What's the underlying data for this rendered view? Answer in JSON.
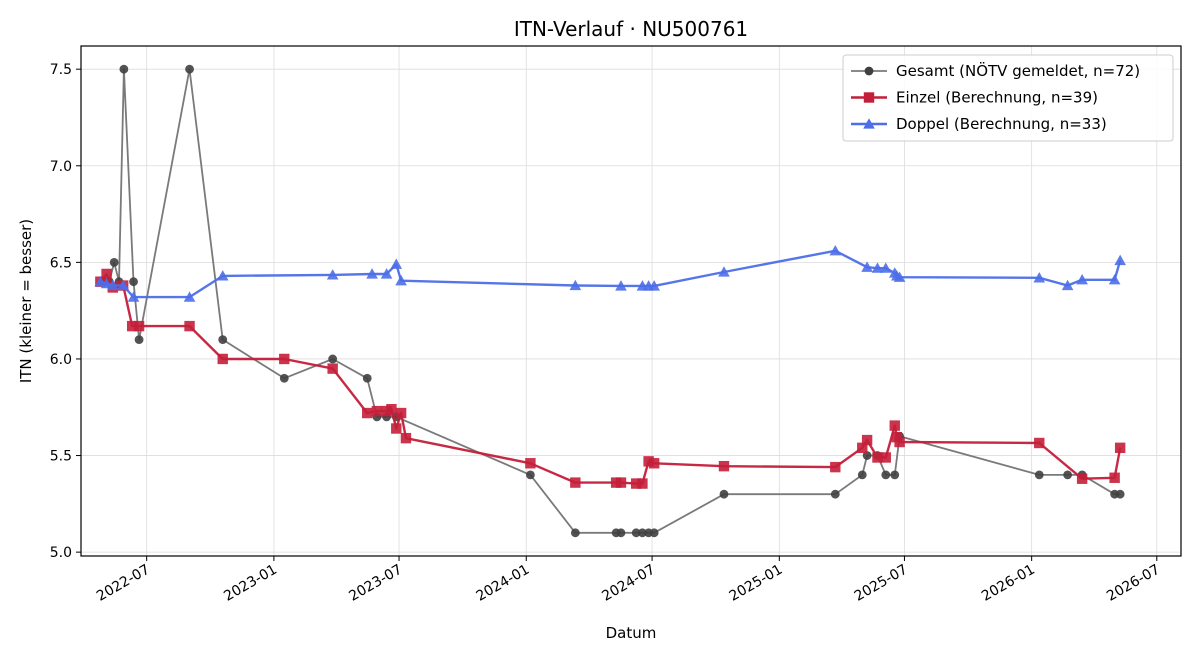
{
  "chart_data": {
    "type": "line",
    "title": "ITN-Verlauf · NU500761",
    "xlabel": "Datum",
    "ylabel": "ITN  (kleiner = besser)",
    "x_type": "date",
    "xlim": [
      "2022-03-28",
      "2026-08-05"
    ],
    "ylim": [
      4.98,
      7.62
    ],
    "x_ticks": [
      "2022-07-01",
      "2023-01-01",
      "2023-07-01",
      "2024-01-01",
      "2024-07-01",
      "2025-01-01",
      "2025-07-01",
      "2026-01-01",
      "2026-07-01"
    ],
    "x_tick_labels": [
      "2022-07",
      "2023-01",
      "2023-07",
      "2024-01",
      "2024-07",
      "2025-01",
      "2025-07",
      "2026-01",
      "2026-07"
    ],
    "y_ticks": [
      5.0,
      5.5,
      6.0,
      6.5,
      7.0,
      7.5
    ],
    "y_tick_labels": [
      "5.0",
      "5.5",
      "6.0",
      "6.5",
      "7.0",
      "7.5"
    ],
    "grid": true,
    "legend_position": "top-right",
    "series": [
      {
        "name": "Gesamt (NÖTV gemeldet, n=72)",
        "color": "#7a7a7a",
        "marker_color": "#404040",
        "marker": "circle",
        "points": [
          [
            "2022-05-01",
            6.4
          ],
          [
            "2022-05-08",
            6.4
          ],
          [
            "2022-05-15",
            6.5
          ],
          [
            "2022-05-22",
            6.4
          ],
          [
            "2022-05-29",
            7.5
          ],
          [
            "2022-06-12",
            6.4
          ],
          [
            "2022-06-20",
            6.1
          ],
          [
            "2022-09-01",
            7.5
          ],
          [
            "2022-10-19",
            6.1
          ],
          [
            "2023-01-16",
            5.9
          ],
          [
            "2023-03-27",
            6.0
          ],
          [
            "2023-05-16",
            5.9
          ],
          [
            "2023-05-30",
            5.7
          ],
          [
            "2023-06-13",
            5.7
          ],
          [
            "2023-06-27",
            5.7
          ],
          [
            "2024-01-07",
            5.4
          ],
          [
            "2024-03-12",
            5.1
          ],
          [
            "2024-05-10",
            5.1
          ],
          [
            "2024-05-17",
            5.1
          ],
          [
            "2024-06-08",
            5.1
          ],
          [
            "2024-06-17",
            5.1
          ],
          [
            "2024-06-26",
            5.1
          ],
          [
            "2024-07-04",
            5.1
          ],
          [
            "2024-10-13",
            5.3
          ],
          [
            "2025-03-23",
            5.3
          ],
          [
            "2025-05-01",
            5.4
          ],
          [
            "2025-05-08",
            5.5
          ],
          [
            "2025-05-23",
            5.5
          ],
          [
            "2025-06-04",
            5.4
          ],
          [
            "2025-06-17",
            5.4
          ],
          [
            "2025-06-24",
            5.6
          ],
          [
            "2026-01-12",
            5.4
          ],
          [
            "2026-02-22",
            5.4
          ],
          [
            "2026-03-15",
            5.4
          ],
          [
            "2026-05-01",
            5.3
          ],
          [
            "2026-05-09",
            5.3
          ]
        ]
      },
      {
        "name": "Einzel (Berechnung, n=39)",
        "color": "#c41e3a",
        "marker_color": "#c41e3a",
        "marker": "square",
        "points": [
          [
            "2022-04-25",
            6.4
          ],
          [
            "2022-05-04",
            6.44
          ],
          [
            "2022-05-13",
            6.37
          ],
          [
            "2022-05-28",
            6.38
          ],
          [
            "2022-06-10",
            6.17
          ],
          [
            "2022-06-20",
            6.17
          ],
          [
            "2022-09-01",
            6.17
          ],
          [
            "2022-10-19",
            6.0
          ],
          [
            "2023-01-16",
            6.0
          ],
          [
            "2023-03-27",
            5.95
          ],
          [
            "2023-05-16",
            5.72
          ],
          [
            "2023-05-30",
            5.73
          ],
          [
            "2023-06-13",
            5.73
          ],
          [
            "2023-06-20",
            5.74
          ],
          [
            "2023-06-27",
            5.64
          ],
          [
            "2023-07-04",
            5.72
          ],
          [
            "2023-07-11",
            5.59
          ],
          [
            "2024-01-07",
            5.46
          ],
          [
            "2024-03-12",
            5.36
          ],
          [
            "2024-05-10",
            5.36
          ],
          [
            "2024-05-17",
            5.36
          ],
          [
            "2024-06-08",
            5.355
          ],
          [
            "2024-06-17",
            5.355
          ],
          [
            "2024-06-26",
            5.47
          ],
          [
            "2024-07-04",
            5.46
          ],
          [
            "2024-10-13",
            5.445
          ],
          [
            "2025-03-23",
            5.44
          ],
          [
            "2025-05-01",
            5.54
          ],
          [
            "2025-05-08",
            5.58
          ],
          [
            "2025-05-23",
            5.49
          ],
          [
            "2025-06-04",
            5.49
          ],
          [
            "2025-06-17",
            5.655
          ],
          [
            "2025-06-20",
            5.595
          ],
          [
            "2025-06-24",
            5.57
          ],
          [
            "2026-01-12",
            5.565
          ],
          [
            "2026-03-15",
            5.38
          ],
          [
            "2026-05-01",
            5.385
          ],
          [
            "2026-05-09",
            5.54
          ]
        ]
      },
      {
        "name": "Doppel (Berechnung, n=33)",
        "color": "#4d6ee8",
        "marker_color": "#4d6ee8",
        "marker": "triangle",
        "points": [
          [
            "2022-04-25",
            6.4
          ],
          [
            "2022-05-04",
            6.39
          ],
          [
            "2022-05-13",
            6.38
          ],
          [
            "2022-05-28",
            6.38
          ],
          [
            "2022-06-12",
            6.32
          ],
          [
            "2022-09-01",
            6.32
          ],
          [
            "2022-10-19",
            6.43
          ],
          [
            "2023-03-27",
            6.435
          ],
          [
            "2023-05-23",
            6.44
          ],
          [
            "2023-06-13",
            6.44
          ],
          [
            "2023-06-27",
            6.49
          ],
          [
            "2023-07-04",
            6.405
          ],
          [
            "2024-03-12",
            6.38
          ],
          [
            "2024-05-17",
            6.378
          ],
          [
            "2024-06-17",
            6.378
          ],
          [
            "2024-06-26",
            6.378
          ],
          [
            "2024-07-04",
            6.378
          ],
          [
            "2024-10-13",
            6.45
          ],
          [
            "2025-03-23",
            6.56
          ],
          [
            "2025-05-08",
            6.475
          ],
          [
            "2025-05-23",
            6.47
          ],
          [
            "2025-06-04",
            6.47
          ],
          [
            "2025-06-17",
            6.445
          ],
          [
            "2025-06-20",
            6.43
          ],
          [
            "2025-06-24",
            6.423
          ],
          [
            "2026-01-12",
            6.42
          ],
          [
            "2026-02-22",
            6.38
          ],
          [
            "2026-03-15",
            6.41
          ],
          [
            "2026-05-01",
            6.41
          ],
          [
            "2026-05-09",
            6.51
          ]
        ]
      }
    ]
  }
}
